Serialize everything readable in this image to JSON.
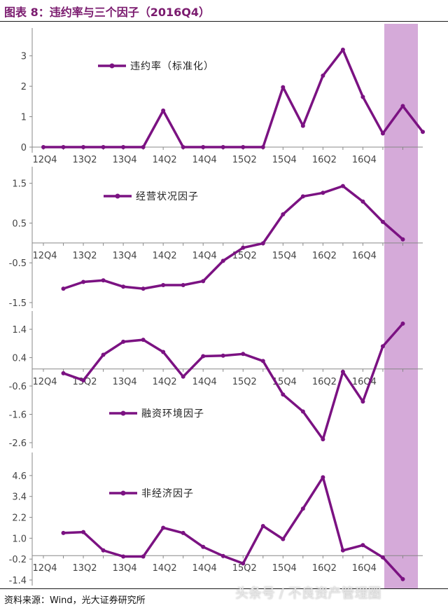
{
  "figure": {
    "title": "图表 8：违约率与三个因子（2016Q4）",
    "source": "资料来源：Wind，光大证券研究所",
    "watermark": "头条号 / 不良资产管理圈",
    "line_color": "#7b1282",
    "highlight_color": "#d5aad9"
  },
  "chart_data": [
    {
      "type": "line",
      "title": "",
      "legend": "违约率（标准化）",
      "x_tick_labels": [
        "12Q4",
        "13Q2",
        "13Q4",
        "14Q2",
        "14Q4",
        "15Q2",
        "15Q4",
        "16Q2",
        "16Q4"
      ],
      "ylim": [
        0,
        3.5
      ],
      "yticks": [
        0,
        1,
        2,
        3
      ],
      "y_tick_labels": [
        "0",
        "1",
        "2",
        "3"
      ],
      "series": [
        {
          "values": [
            0,
            0,
            0,
            0,
            0,
            0,
            1.2,
            0,
            0,
            0,
            0,
            0,
            1.97,
            0.7,
            2.35,
            3.2,
            1.65,
            0.45,
            1.35,
            0.5
          ]
        }
      ]
    },
    {
      "type": "line",
      "title": "",
      "legend": "经营状况因子",
      "x_tick_labels": [
        "12Q4",
        "13Q2",
        "13Q4",
        "14Q2",
        "14Q4",
        "15Q2",
        "15Q4",
        "16Q2",
        "16Q4"
      ],
      "ylim": [
        -1.5,
        1.6
      ],
      "yticks": [
        -1.5,
        -0.5,
        0.5,
        1.5
      ],
      "y_tick_labels": [
        "-1.5",
        "-0.5",
        "0.5",
        "1.5"
      ],
      "series": [
        {
          "values": [
            -1.15,
            -0.98,
            -0.94,
            -1.1,
            -1.15,
            -1.06,
            -1.06,
            -0.96,
            -0.45,
            -0.12,
            -0.01,
            0.72,
            1.17,
            1.26,
            1.43,
            1.04,
            0.53,
            0.09
          ]
        }
      ]
    },
    {
      "type": "line",
      "title": "",
      "legend": "融资环境因子",
      "x_tick_labels": [
        "12Q4",
        "13Q2",
        "13Q4",
        "14Q2",
        "14Q4",
        "15Q2",
        "15Q4",
        "16Q2",
        "16Q4"
      ],
      "ylim": [
        -2.6,
        1.6
      ],
      "yticks": [
        -2.6,
        -1.6,
        -0.6,
        0.4,
        1.4
      ],
      "y_tick_labels": [
        "-2.6",
        "-1.6",
        "-0.6",
        "0.4",
        "1.4"
      ],
      "series": [
        {
          "values": [
            -0.15,
            -0.4,
            0.5,
            0.96,
            1.03,
            0.6,
            -0.27,
            0.45,
            0.47,
            0.53,
            0.28,
            -0.9,
            -1.5,
            -2.48,
            -0.1,
            -1.15,
            0.8,
            1.6
          ]
        }
      ]
    },
    {
      "type": "line",
      "title": "",
      "legend": "非经济因子",
      "x_tick_labels": [
        "12Q4",
        "13Q2",
        "13Q4",
        "14Q2",
        "14Q4",
        "15Q2",
        "15Q4",
        "16Q2",
        "16Q4"
      ],
      "ylim": [
        -1.4,
        5.2
      ],
      "yticks": [
        -1.4,
        -0.2,
        1.0,
        2.2,
        3.4,
        4.6
      ],
      "y_tick_labels": [
        "-1.4",
        "-0.2",
        "1.0",
        "2.2",
        "3.4",
        "4.6"
      ],
      "series": [
        {
          "values": [
            1.3,
            1.35,
            0.3,
            -0.05,
            -0.05,
            1.6,
            1.3,
            0.5,
            -0.02,
            -0.45,
            1.7,
            0.95,
            2.7,
            4.5,
            0.3,
            0.6,
            -0.1,
            -1.35
          ]
        }
      ]
    }
  ]
}
